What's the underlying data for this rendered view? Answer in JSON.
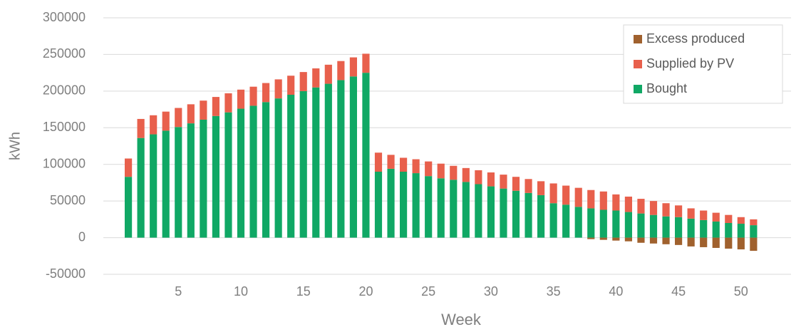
{
  "chart_data": {
    "type": "stacked_bar",
    "x_label": "Week",
    "y_label": "kWh",
    "x": [
      1,
      2,
      3,
      4,
      5,
      6,
      7,
      8,
      9,
      10,
      11,
      12,
      13,
      14,
      15,
      16,
      17,
      18,
      19,
      20,
      21,
      22,
      23,
      24,
      25,
      26,
      27,
      28,
      29,
      30,
      31,
      32,
      33,
      34,
      35,
      36,
      37,
      38,
      39,
      40,
      41,
      42,
      43,
      44,
      45,
      46,
      47,
      48,
      49,
      50,
      51
    ],
    "series": [
      {
        "name": "Excess produced",
        "color": "#a0612e",
        "values": [
          0,
          0,
          0,
          0,
          0,
          0,
          0,
          0,
          0,
          0,
          0,
          0,
          0,
          0,
          0,
          0,
          0,
          0,
          0,
          0,
          0,
          0,
          0,
          0,
          0,
          0,
          0,
          0,
          0,
          0,
          0,
          0,
          0,
          0,
          0,
          0,
          0,
          -2000,
          -3000,
          -4000,
          -5000,
          -7000,
          -8000,
          -9000,
          -10000,
          -12000,
          -13000,
          -14000,
          -15000,
          -16000,
          -18000
        ]
      },
      {
        "name": "Supplied by PV",
        "color": "#e8604c",
        "values": [
          25000,
          26000,
          26000,
          26000,
          26000,
          26000,
          26000,
          26000,
          26000,
          26000,
          26000,
          26000,
          26000,
          26000,
          26000,
          26000,
          26000,
          26000,
          26000,
          26000,
          26000,
          19000,
          19000,
          19000,
          20000,
          20000,
          19000,
          19000,
          19000,
          19000,
          19000,
          19000,
          19000,
          19000,
          27000,
          26000,
          26000,
          25000,
          25000,
          22000,
          21000,
          20000,
          19000,
          18000,
          16000,
          14000,
          13000,
          12000,
          11000,
          9000,
          8000
        ]
      },
      {
        "name": "Bought",
        "color": "#10a865",
        "values": [
          83000,
          136000,
          141000,
          146000,
          151000,
          156000,
          161000,
          166000,
          171000,
          176000,
          180000,
          185000,
          190000,
          195000,
          200000,
          205000,
          210000,
          215000,
          220000,
          225000,
          90000,
          94000,
          90000,
          88000,
          84000,
          81000,
          79000,
          76000,
          73000,
          70000,
          67000,
          64000,
          61000,
          58000,
          47000,
          45000,
          42000,
          40000,
          38000,
          37000,
          35000,
          33000,
          31000,
          29000,
          28000,
          26000,
          24000,
          22000,
          20000,
          19000,
          17000
        ]
      }
    ],
    "xlim": [
      -1,
      54
    ],
    "xticks": [
      5,
      10,
      15,
      20,
      25,
      30,
      35,
      40,
      45,
      50
    ],
    "ylim": [
      -50000,
      300000
    ],
    "yticks": [
      -50000,
      0,
      50000,
      100000,
      150000,
      200000,
      250000,
      300000
    ],
    "grid": true,
    "legend": "top-right"
  }
}
